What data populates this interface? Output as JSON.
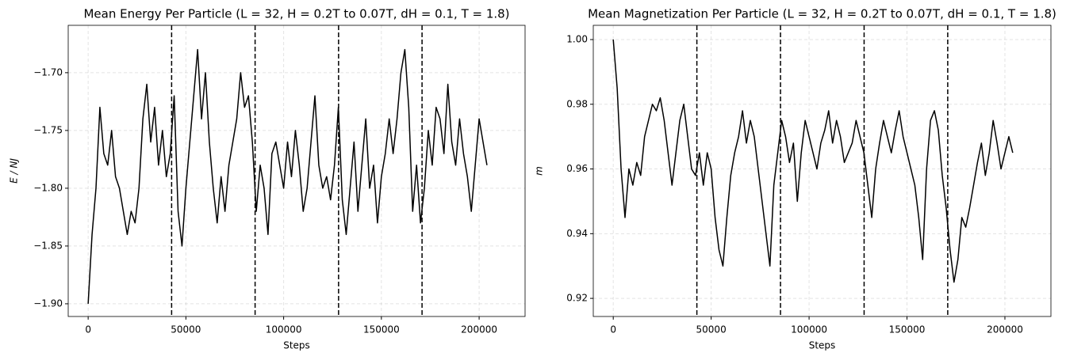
{
  "chart_data": [
    {
      "type": "line",
      "title": "Mean Energy Per Particle (L = 32,  H = 0.2T to 0.07T, dH = 0.1, T = 1.8)",
      "xlabel": "Steps",
      "ylabel": "E / NJ",
      "color": "#000000",
      "grid": true,
      "xlim": [
        -10200,
        223500
      ],
      "ylim": [
        -1.911,
        -1.659
      ],
      "xticks": [
        0,
        50000,
        100000,
        150000,
        200000
      ],
      "yticks": [
        {
          "value": -1.9,
          "label": "−1.90"
        },
        {
          "value": -1.85,
          "label": "−1.85"
        },
        {
          "value": -1.8,
          "label": "−1.80"
        },
        {
          "value": -1.75,
          "label": "−1.75"
        },
        {
          "value": -1.7,
          "label": "−1.70"
        }
      ],
      "vlines": [
        42700,
        85400,
        128100,
        170800
      ],
      "x": [
        0,
        2000,
        4000,
        6000,
        8000,
        10000,
        12000,
        14000,
        16000,
        18000,
        20000,
        22000,
        24000,
        26000,
        28000,
        30000,
        32000,
        34000,
        36000,
        38000,
        40000,
        42000,
        44000,
        46000,
        48000,
        50000,
        52000,
        54000,
        56000,
        58000,
        60000,
        62000,
        64000,
        66000,
        68000,
        70000,
        72000,
        74000,
        76000,
        78000,
        80000,
        82000,
        84000,
        86000,
        88000,
        90000,
        92000,
        94000,
        96000,
        98000,
        100000,
        102000,
        104000,
        106000,
        108000,
        110000,
        112000,
        114000,
        116000,
        118000,
        120000,
        122000,
        124000,
        126000,
        128000,
        130000,
        132000,
        134000,
        136000,
        138000,
        140000,
        142000,
        144000,
        146000,
        148000,
        150000,
        152000,
        154000,
        156000,
        158000,
        160000,
        162000,
        164000,
        166000,
        168000,
        170000,
        172000,
        174000,
        176000,
        178000,
        180000,
        182000,
        184000,
        186000,
        188000,
        190000,
        192000,
        194000,
        196000,
        198000,
        200000,
        202000,
        204000
      ],
      "values": [
        -1.9,
        -1.84,
        -1.8,
        -1.73,
        -1.77,
        -1.78,
        -1.75,
        -1.79,
        -1.8,
        -1.82,
        -1.84,
        -1.82,
        -1.83,
        -1.8,
        -1.74,
        -1.71,
        -1.76,
        -1.73,
        -1.78,
        -1.75,
        -1.79,
        -1.77,
        -1.72,
        -1.82,
        -1.85,
        -1.8,
        -1.76,
        -1.72,
        -1.68,
        -1.74,
        -1.7,
        -1.76,
        -1.8,
        -1.83,
        -1.79,
        -1.82,
        -1.78,
        -1.76,
        -1.74,
        -1.7,
        -1.73,
        -1.72,
        -1.76,
        -1.82,
        -1.78,
        -1.8,
        -1.84,
        -1.77,
        -1.76,
        -1.78,
        -1.8,
        -1.76,
        -1.79,
        -1.75,
        -1.78,
        -1.82,
        -1.8,
        -1.76,
        -1.72,
        -1.78,
        -1.8,
        -1.79,
        -1.81,
        -1.78,
        -1.73,
        -1.81,
        -1.84,
        -1.8,
        -1.76,
        -1.82,
        -1.78,
        -1.74,
        -1.8,
        -1.78,
        -1.83,
        -1.79,
        -1.77,
        -1.74,
        -1.77,
        -1.74,
        -1.7,
        -1.68,
        -1.73,
        -1.82,
        -1.78,
        -1.83,
        -1.8,
        -1.75,
        -1.78,
        -1.73,
        -1.74,
        -1.77,
        -1.71,
        -1.76,
        -1.78,
        -1.74,
        -1.77,
        -1.79,
        -1.82,
        -1.78,
        -1.74,
        -1.76,
        -1.78
      ]
    },
    {
      "type": "line",
      "title": "Mean Magnetization Per Particle (L = 32, H = 0.2T to 0.07T, dH = 0.1, T = 1.8)",
      "xlabel": "Steps",
      "ylabel": "m",
      "color": "#000000",
      "grid": true,
      "xlim": [
        -10200,
        223500
      ],
      "ylim": [
        0.9144,
        1.0044
      ],
      "xticks": [
        0,
        50000,
        100000,
        150000,
        200000
      ],
      "yticks": [
        0.92,
        0.94,
        0.96,
        0.98,
        {
          "value": 1.0,
          "label": "1.00"
        }
      ],
      "vlines": [
        42700,
        85400,
        128100,
        170800
      ],
      "x": [
        0,
        2000,
        4000,
        6000,
        8000,
        10000,
        12000,
        14000,
        16000,
        18000,
        20000,
        22000,
        24000,
        26000,
        28000,
        30000,
        32000,
        34000,
        36000,
        38000,
        40000,
        42000,
        44000,
        46000,
        48000,
        50000,
        52000,
        54000,
        56000,
        58000,
        60000,
        62000,
        64000,
        66000,
        68000,
        70000,
        72000,
        74000,
        76000,
        78000,
        80000,
        82000,
        84000,
        86000,
        88000,
        90000,
        92000,
        94000,
        96000,
        98000,
        100000,
        102000,
        104000,
        106000,
        108000,
        110000,
        112000,
        114000,
        116000,
        118000,
        120000,
        122000,
        124000,
        126000,
        128000,
        130000,
        132000,
        134000,
        136000,
        138000,
        140000,
        142000,
        144000,
        146000,
        148000,
        150000,
        152000,
        154000,
        156000,
        158000,
        160000,
        162000,
        164000,
        166000,
        168000,
        170000,
        172000,
        174000,
        176000,
        178000,
        180000,
        182000,
        184000,
        186000,
        188000,
        190000,
        192000,
        194000,
        196000,
        198000,
        200000,
        202000,
        204000
      ],
      "values": [
        1.0,
        0.985,
        0.96,
        0.945,
        0.96,
        0.955,
        0.962,
        0.958,
        0.97,
        0.975,
        0.98,
        0.978,
        0.982,
        0.975,
        0.965,
        0.955,
        0.965,
        0.975,
        0.98,
        0.97,
        0.96,
        0.958,
        0.965,
        0.955,
        0.965,
        0.96,
        0.945,
        0.935,
        0.93,
        0.945,
        0.958,
        0.965,
        0.97,
        0.978,
        0.968,
        0.975,
        0.97,
        0.96,
        0.95,
        0.94,
        0.93,
        0.955,
        0.965,
        0.975,
        0.97,
        0.962,
        0.968,
        0.95,
        0.965,
        0.975,
        0.97,
        0.965,
        0.96,
        0.968,
        0.972,
        0.978,
        0.968,
        0.975,
        0.97,
        0.962,
        0.965,
        0.968,
        0.975,
        0.97,
        0.965,
        0.955,
        0.945,
        0.96,
        0.968,
        0.975,
        0.97,
        0.965,
        0.972,
        0.978,
        0.97,
        0.965,
        0.96,
        0.955,
        0.945,
        0.932,
        0.96,
        0.975,
        0.978,
        0.972,
        0.958,
        0.948,
        0.935,
        0.925,
        0.932,
        0.945,
        0.942,
        0.948,
        0.955,
        0.962,
        0.968,
        0.958,
        0.965,
        0.975,
        0.968,
        0.96,
        0.965,
        0.97,
        0.965
      ]
    }
  ]
}
